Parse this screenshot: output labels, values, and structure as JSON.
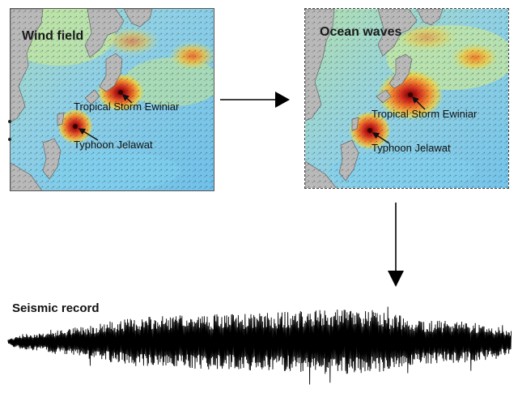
{
  "panels": {
    "wind": {
      "title": "Wind field",
      "label_storm": "Tropical Storm Ewiniar",
      "label_typhoon": "Typhoon Jelawat"
    },
    "ocean": {
      "title": "Ocean waves",
      "label_storm": "Tropical Storm Ewiniar",
      "label_typhoon": "Typhoon Jelawat"
    }
  },
  "seismic": {
    "title": "Seismic record"
  },
  "colors": {
    "land": "#b9b9b9",
    "ocean_low": "#7cc8e8",
    "ocean_mid": "#bfe6a0",
    "storm_high": "#e8412a",
    "storm_core": "#8b0f0f",
    "waveform": "#000000"
  },
  "icons": [
    "arrow-right-icon",
    "arrow-down-icon",
    "pointer-arrow-icon"
  ]
}
